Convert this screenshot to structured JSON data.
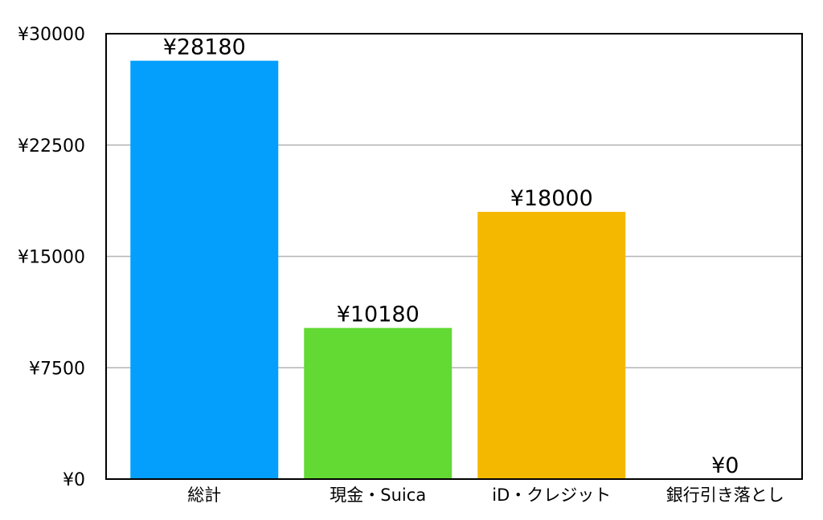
{
  "chart_data": {
    "type": "bar",
    "title": "",
    "xlabel": "",
    "ylabel": "",
    "categories": [
      "総計",
      "現金・Suica",
      "iD・クレジット",
      "銀行引き落とし"
    ],
    "values": [
      28180,
      10180,
      18000,
      0
    ],
    "data_labels": [
      "¥28180",
      "¥10180",
      "¥18000",
      "¥0"
    ],
    "bar_colors": [
      "#049ffd",
      "#63d934",
      "#f5b800",
      "#f5b800"
    ],
    "ylim": [
      0,
      30000
    ],
    "y_ticks": [
      0,
      7500,
      15000,
      22500,
      30000
    ],
    "y_tick_labels": [
      "¥0",
      "¥7500",
      "¥15000",
      "¥22500",
      "¥30000"
    ],
    "grid": true,
    "gridline_color": "#b4b4b4",
    "legend": "none"
  }
}
